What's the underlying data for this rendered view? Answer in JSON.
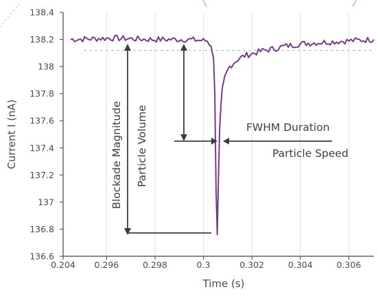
{
  "chart_data": {
    "type": "line",
    "xlabel": "Time (s)",
    "ylabel": "Current I (nA)",
    "x_ticks": [
      "0.204",
      "0.296",
      "0.298",
      "0.3",
      "0.302",
      "0.304",
      "0.306"
    ],
    "y_ticks": [
      "136.6",
      "136.8",
      "137",
      "137.2",
      "137.4",
      "137.6",
      "137.8",
      "138",
      "138.2",
      "138.4"
    ],
    "ylim": [
      136.6,
      138.4
    ],
    "xlim": [
      0.2945,
      0.307
    ],
    "grid": "vertical",
    "baseline_current": 138.2,
    "peak_current_min": 136.76,
    "event_time": 0.3007,
    "series": [
      {
        "color": "#7a3a8c",
        "x": [
          0.2948,
          0.2965,
          0.298,
          0.2995,
          0.3003,
          0.30045,
          0.30055,
          0.3006,
          0.30065,
          0.3007,
          0.30075,
          0.3008,
          0.30085,
          0.3009,
          0.301,
          0.3012,
          0.3015,
          0.3018,
          0.3022,
          0.3026,
          0.303,
          0.3034,
          0.3038,
          0.3042,
          0.305,
          0.306,
          0.307
        ],
        "values": [
          138.2,
          138.21,
          138.2,
          138.2,
          138.19,
          138.15,
          138.06,
          137.8,
          137.1,
          136.76,
          137.2,
          137.55,
          137.72,
          137.84,
          137.93,
          138.0,
          138.05,
          138.08,
          138.1,
          138.12,
          138.13,
          138.15,
          138.16,
          138.17,
          138.18,
          138.19,
          138.2
        ]
      }
    ],
    "annotations": {
      "blockade": "Blockade Magnitude",
      "volume": "Particle Volume",
      "fwhm": "FWHM Duration",
      "speed": "Particle Speed"
    },
    "colors": {
      "trace": "#7a3a8c",
      "grid": "#e2e2e2",
      "axis": "#444444",
      "baseline": "#bdbdbd",
      "decor": "#f3b08e"
    }
  }
}
